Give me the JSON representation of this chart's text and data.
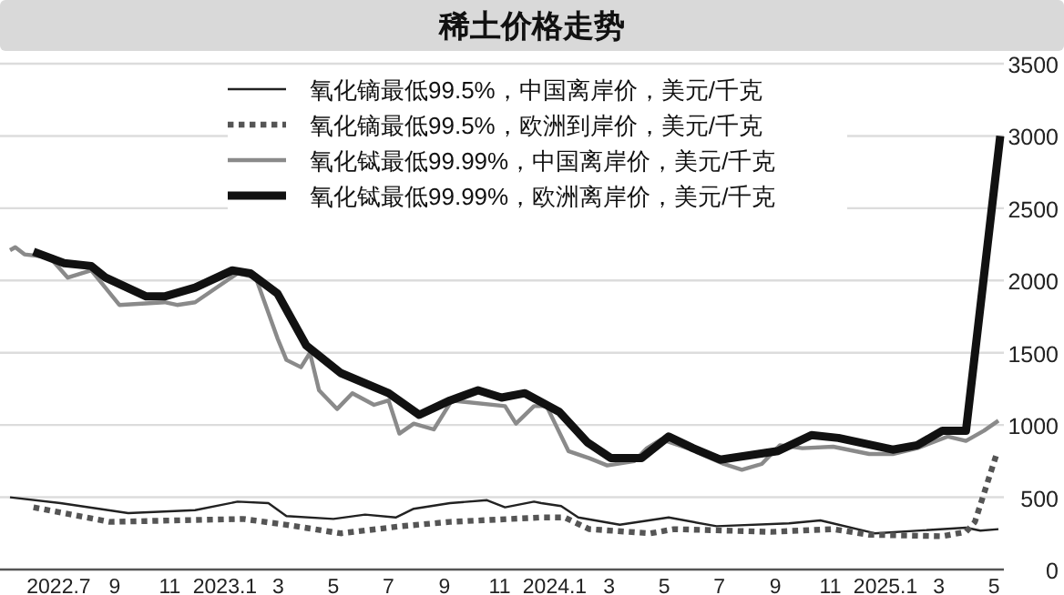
{
  "chart_data": {
    "type": "line",
    "title": "稀土价格走势",
    "xlim": [
      "2022-04-27",
      "2025-05-12"
    ],
    "xticks": [
      {
        "value": "2022-07-01",
        "label": "2022.7"
      },
      {
        "value": "2022-09-01",
        "label": "9"
      },
      {
        "value": "2022-11-01",
        "label": "11"
      },
      {
        "value": "2023-01-01",
        "label": "2023.1"
      },
      {
        "value": "2023-03-01",
        "label": "3"
      },
      {
        "value": "2023-05-01",
        "label": "5"
      },
      {
        "value": "2023-07-01",
        "label": "7"
      },
      {
        "value": "2023-09-01",
        "label": "9"
      },
      {
        "value": "2023-11-01",
        "label": "11"
      },
      {
        "value": "2024-01-01",
        "label": "2024.1"
      },
      {
        "value": "2024-03-01",
        "label": "3"
      },
      {
        "value": "2024-05-01",
        "label": "5"
      },
      {
        "value": "2024-07-01",
        "label": "7"
      },
      {
        "value": "2024-09-01",
        "label": "9"
      },
      {
        "value": "2024-11-01",
        "label": "11"
      },
      {
        "value": "2025-01-01",
        "label": "2025.1"
      },
      {
        "value": "2025-03-01",
        "label": "3"
      },
      {
        "value": "2025-05-01",
        "label": "5"
      }
    ],
    "ylim": [
      0,
      3500
    ],
    "yticks": [
      0,
      500,
      1000,
      1500,
      2000,
      2500,
      3000,
      3500
    ],
    "grid": "y",
    "legend": "top",
    "series": [
      {
        "name": "氧化镝最低99.5%，中国离岸价，美元/千克",
        "color": "#222222",
        "line_style": "solid",
        "x": [
          "2022-05-08",
          "2022-07-03",
          "2022-09-16",
          "2022-11-29",
          "2023-01-15",
          "2023-02-18",
          "2023-03-10",
          "2023-05-01",
          "2023-06-05",
          "2023-07-09",
          "2023-07-29",
          "2023-09-07",
          "2023-10-18",
          "2023-11-07",
          "2023-12-09",
          "2023-12-17",
          "2024-01-08",
          "2024-01-27",
          "2024-03-13",
          "2024-05-06",
          "2024-06-28",
          "2024-09-16",
          "2024-10-21",
          "2024-12-20",
          "2025-03-31",
          "2025-04-16",
          "2025-05-06"
        ],
        "values": [
          500,
          460,
          390,
          410,
          470,
          460,
          370,
          350,
          380,
          360,
          420,
          460,
          480,
          430,
          470,
          460,
          440,
          360,
          310,
          360,
          300,
          320,
          340,
          250,
          290,
          270,
          280
        ]
      },
      {
        "name": "氧化镝最低99.5%，欧洲到岸价，美元/千克",
        "color": "#555555",
        "line_style": "dotted",
        "x": [
          "2022-06-03",
          "2022-08-26",
          "2023-01-21",
          "2023-03-10",
          "2023-05-09",
          "2023-07-15",
          "2023-09-07",
          "2023-12-17",
          "2024-01-12",
          "2024-02-08",
          "2024-04-16",
          "2024-05-12",
          "2024-08-27",
          "2024-11-04",
          "2024-12-14",
          "2025-03-05",
          "2025-03-31",
          "2025-04-10",
          "2025-05-04"
        ],
        "values": [
          430,
          330,
          350,
          310,
          250,
          300,
          330,
          360,
          360,
          280,
          250,
          280,
          260,
          280,
          240,
          230,
          260,
          330,
          800
        ]
      },
      {
        "name": "氧化铽最低99.99%，中国离岸价，美元/千克",
        "color": "#8a8a8a",
        "line_style": "solid",
        "x": [
          "2022-05-08",
          "2022-05-14",
          "2022-05-24",
          "2022-06-21",
          "2022-07-11",
          "2022-08-06",
          "2022-09-06",
          "2022-10-26",
          "2022-11-09",
          "2022-11-29",
          "2023-01-15",
          "2023-02-04",
          "2023-02-28",
          "2023-03-10",
          "2023-03-26",
          "2023-04-05",
          "2023-04-15",
          "2023-05-05",
          "2023-05-22",
          "2023-06-15",
          "2023-07-01",
          "2023-07-13",
          "2023-07-29",
          "2023-08-20",
          "2023-09-09",
          "2023-11-07",
          "2023-11-19",
          "2023-12-09",
          "2023-12-23",
          "2024-01-16",
          "2024-02-08",
          "2024-02-28",
          "2024-03-29",
          "2024-04-12",
          "2024-04-28",
          "2024-05-27",
          "2024-07-06",
          "2024-07-26",
          "2024-08-17",
          "2024-09-06",
          "2024-10-01",
          "2024-11-04",
          "2024-12-14",
          "2025-01-09",
          "2025-02-05",
          "2025-03-11",
          "2025-03-31",
          "2025-04-20",
          "2025-05-06"
        ],
        "values": [
          2210,
          2230,
          2180,
          2160,
          2020,
          2070,
          1830,
          1850,
          1830,
          1850,
          2050,
          2020,
          1600,
          1450,
          1400,
          1500,
          1240,
          1110,
          1220,
          1140,
          1170,
          940,
          1010,
          970,
          1170,
          1130,
          1010,
          1130,
          1130,
          820,
          770,
          720,
          750,
          840,
          900,
          840,
          730,
          690,
          730,
          860,
          840,
          850,
          800,
          800,
          840,
          920,
          890,
          960,
          1030
        ]
      },
      {
        "name": "氧化铽最低99.99%，欧洲离岸价，美元/千克",
        "color": "#111111",
        "line_style": "solid",
        "x": [
          "2022-06-03",
          "2022-07-07",
          "2022-08-06",
          "2022-08-22",
          "2022-10-06",
          "2022-10-26",
          "2022-11-29",
          "2023-01-09",
          "2023-01-29",
          "2023-02-28",
          "2023-04-01",
          "2023-05-09",
          "2023-07-01",
          "2023-08-04",
          "2023-09-07",
          "2023-10-08",
          "2023-11-03",
          "2023-11-29",
          "2024-01-06",
          "2024-02-06",
          "2024-03-03",
          "2024-04-06",
          "2024-05-06",
          "2024-06-02",
          "2024-07-02",
          "2024-09-04",
          "2024-10-11",
          "2024-11-10",
          "2025-01-09",
          "2025-02-05",
          "2025-03-05",
          "2025-03-31",
          "2025-05-08"
        ],
        "values": [
          2200,
          2120,
          2100,
          2020,
          1890,
          1890,
          1950,
          2070,
          2050,
          1910,
          1550,
          1360,
          1220,
          1070,
          1170,
          1240,
          1190,
          1220,
          1090,
          880,
          770,
          770,
          920,
          840,
          760,
          820,
          930,
          910,
          830,
          860,
          960,
          960,
          3000
        ]
      }
    ]
  }
}
